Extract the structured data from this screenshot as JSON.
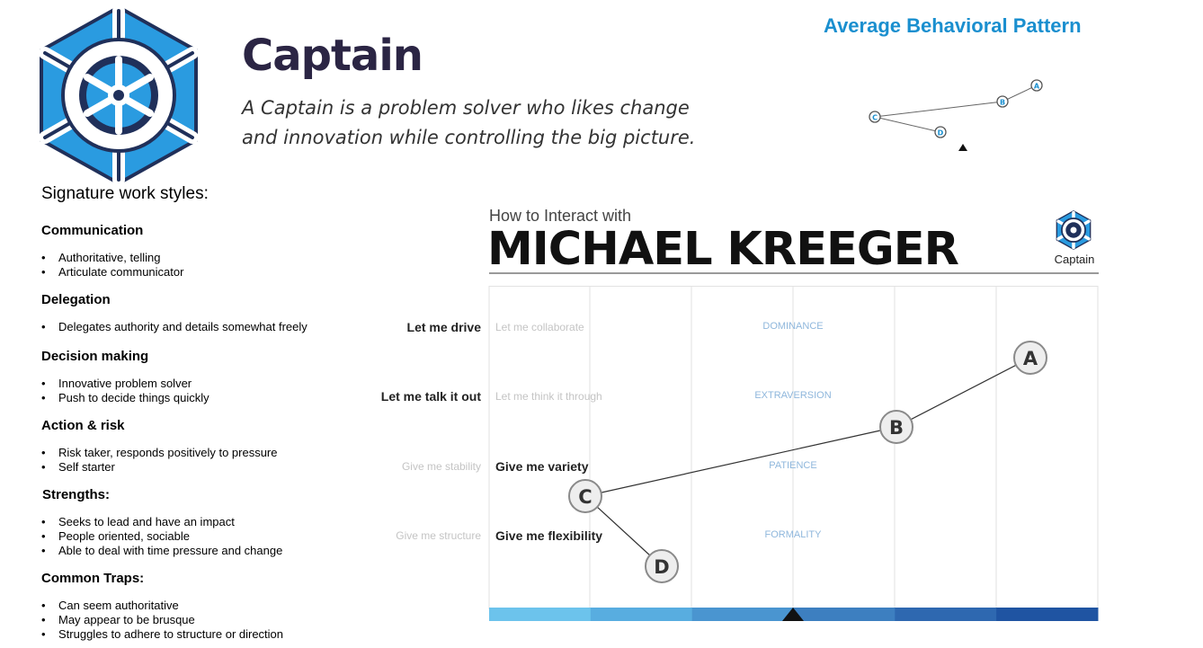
{
  "header": {
    "title": "Captain",
    "subtitle": "A Captain is a problem solver who likes change and innovation while controlling the big picture.",
    "logo_icon": "ship-wheel-icon"
  },
  "avg_pattern": {
    "title": "Average Behavioral Pattern",
    "points": [
      "A",
      "B",
      "C",
      "D"
    ]
  },
  "signature": {
    "title": "Signature work styles:",
    "sections": [
      {
        "heading": "Communication",
        "items": [
          "Authoritative, telling",
          "Articulate communicator"
        ]
      },
      {
        "heading": "Delegation",
        "items": [
          "Delegates authority and details somewhat freely"
        ]
      },
      {
        "heading": "Decision making",
        "items": [
          "Innovative problem solver",
          "Push to decide things quickly"
        ]
      },
      {
        "heading": "Action & risk",
        "items": [
          "Risk taker, responds positively to pressure",
          "Self starter"
        ]
      },
      {
        "heading": "Strengths:",
        "items": [
          "Seeks to lead and have an impact",
          "People oriented, sociable",
          "Able to deal with time pressure and change"
        ]
      },
      {
        "heading": "Common Traps:",
        "items": [
          "Can seem authoritative",
          "May appear to be brusque",
          "Struggles to adhere to structure or direction"
        ]
      }
    ]
  },
  "card": {
    "small_title": "How to Interact with",
    "name": "MICHAEL KREEGER",
    "profile_label": "Captain",
    "rows": [
      {
        "trait": "DOMINANCE",
        "left": "Let me collaborate",
        "left_active": false,
        "right": "Let me drive",
        "right_active": true
      },
      {
        "trait": "EXTRAVERSION",
        "left": "Let me think it through",
        "left_active": false,
        "right": "Let me talk it out",
        "right_active": true
      },
      {
        "trait": "PATIENCE",
        "left": "Give me variety",
        "left_active": true,
        "right": "Give me stability",
        "right_active": false
      },
      {
        "trait": "FORMALITY",
        "left": "Give me flexibility",
        "left_active": true,
        "right": "Give me structure",
        "right_active": false
      }
    ],
    "nodes": [
      "A",
      "B",
      "C",
      "D"
    ],
    "scale_colors": [
      "#6cc3ec",
      "#58ade0",
      "#4a95d0",
      "#3d7fc0",
      "#2e68b0",
      "#1f54a2"
    ]
  }
}
